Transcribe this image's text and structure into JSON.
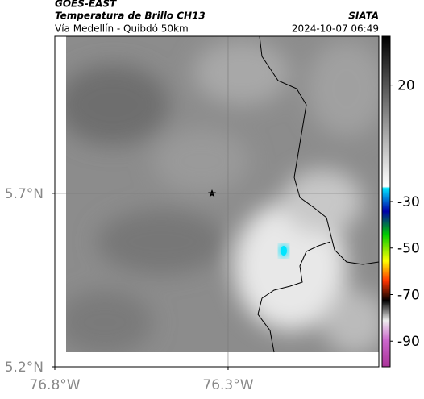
{
  "header": {
    "title": "GOES-EAST",
    "subtitle": "Temperatura de Brillo CH13",
    "region": "Vía Medellín - Quibdó 50km",
    "source": "SIATA",
    "timestamp": "2024-10-07 06:49"
  },
  "map": {
    "xlim": [
      -76.8,
      -75.865
    ],
    "ylim": [
      5.2,
      6.153
    ],
    "xticks": [
      {
        "value": -76.8,
        "label": "76.8°W"
      },
      {
        "value": -76.3,
        "label": "76.3°W"
      }
    ],
    "yticks": [
      {
        "value": 5.2,
        "label": "5.2°N"
      },
      {
        "value": 5.7,
        "label": "5.7°N"
      }
    ],
    "grid": true
  },
  "colorbar": {
    "lim": [
      41,
      -101
    ],
    "ticks": [
      20,
      -30,
      -50,
      -70,
      -90
    ]
  }
}
